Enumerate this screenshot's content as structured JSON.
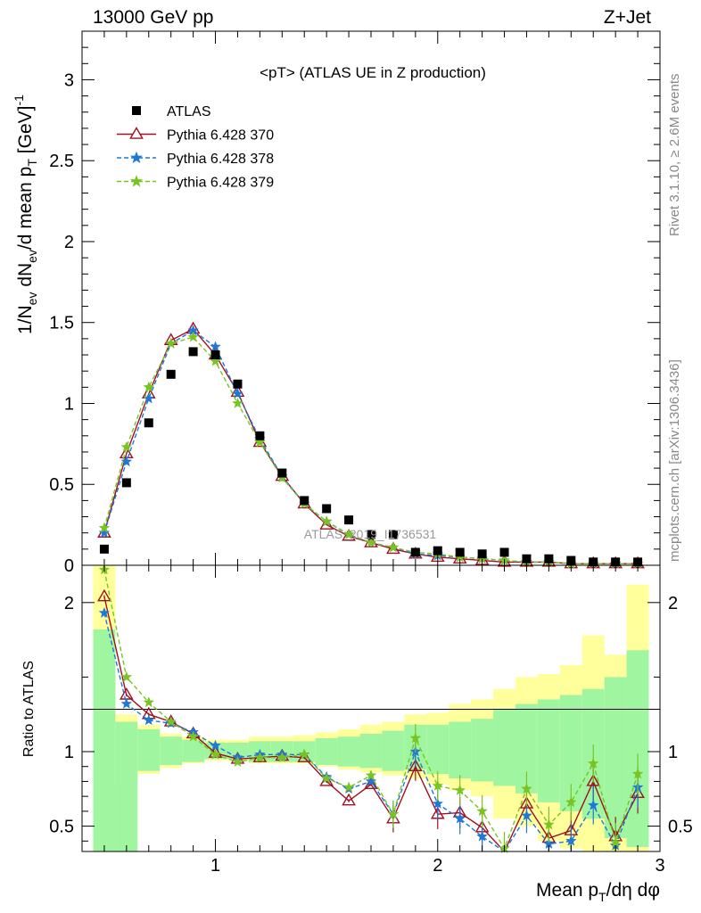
{
  "header": {
    "left": "13000 GeV pp",
    "right": "Z+Jet"
  },
  "side": {
    "rivet": "Rivet 3.1.10, ≥ 2.6M events",
    "mcplots": "mcplots.cern.ch [arXiv:1306.3436]"
  },
  "watermark": "ATLAS_2019_I1736531",
  "colors": {
    "data": "#000000",
    "p370": "#a01020",
    "p378": "#1f78d8",
    "p379": "#7ac422",
    "band_inner": "#a0f5a0",
    "band_outer": "#ffff9c"
  },
  "chart_data": [
    {
      "type": "scatter",
      "panel": "main",
      "title": "<pT> (ATLAS UE in Z production)",
      "xlabel": "Mean p_T/dη dφ",
      "ylabel": "1/N_ev dN_ev/d mean p_T [GeV]^-1",
      "xlim": [
        0.4,
        3.0
      ],
      "ylim": [
        0,
        3.3
      ],
      "yticks": [
        0,
        0.5,
        1,
        1.5,
        2,
        2.5,
        3
      ],
      "ytick_labels": [
        "0",
        "0.5",
        "1",
        "1.5",
        "2",
        "2.5",
        "3"
      ],
      "legend": [
        "ATLAS",
        "Pythia 6.428 370",
        "Pythia 6.428 378",
        "Pythia 6.428 379"
      ],
      "legend_position": "top-left",
      "x": [
        0.5,
        0.6,
        0.7,
        0.8,
        0.9,
        1.0,
        1.1,
        1.2,
        1.3,
        1.4,
        1.5,
        1.6,
        1.7,
        1.8,
        1.9,
        2.0,
        2.1,
        2.2,
        2.3,
        2.4,
        2.5,
        2.6,
        2.7,
        2.8,
        2.9
      ],
      "series": [
        {
          "name": "ATLAS",
          "marker": "square",
          "values": [
            0.1,
            0.51,
            0.88,
            1.18,
            1.32,
            1.3,
            1.12,
            0.8,
            0.57,
            0.4,
            0.35,
            0.28,
            0.19,
            0.19,
            0.08,
            0.09,
            0.08,
            0.07,
            0.08,
            0.04,
            0.04,
            0.03,
            0.02,
            0.02,
            0.02
          ]
        },
        {
          "name": "Pythia 6.428 370",
          "marker": "triangle",
          "values": [
            0.2,
            0.69,
            1.06,
            1.39,
            1.46,
            1.3,
            1.07,
            0.76,
            0.55,
            0.38,
            0.25,
            0.18,
            0.14,
            0.1,
            0.07,
            0.05,
            0.04,
            0.03,
            0.02,
            0.02,
            0.02,
            0.01,
            0.01,
            0.01,
            0.01
          ]
        },
        {
          "name": "Pythia 6.428 378",
          "marker": "star",
          "values": [
            0.2,
            0.64,
            1.03,
            1.37,
            1.45,
            1.35,
            1.06,
            0.78,
            0.55,
            0.38,
            0.27,
            0.19,
            0.14,
            0.11,
            0.07,
            0.06,
            0.05,
            0.04,
            0.03,
            0.02,
            0.02,
            0.01,
            0.01,
            0.01,
            0.01
          ]
        },
        {
          "name": "Pythia 6.428 379",
          "marker": "star",
          "values": [
            0.23,
            0.73,
            1.1,
            1.37,
            1.41,
            1.26,
            1.0,
            0.76,
            0.54,
            0.38,
            0.27,
            0.19,
            0.14,
            0.11,
            0.08,
            0.07,
            0.05,
            0.04,
            0.03,
            0.02,
            0.02,
            0.01,
            0.01,
            0.01,
            0.01
          ]
        }
      ]
    },
    {
      "type": "line",
      "panel": "ratio",
      "ylabel": "Ratio to ATLAS",
      "xlim": [
        0.4,
        3.0
      ],
      "ylim": [
        0.33,
        2.25
      ],
      "xticks": [
        1,
        2,
        3
      ],
      "xtick_labels": [
        "1",
        "2",
        "3"
      ],
      "yticks": [
        0.5,
        1,
        2
      ],
      "ytick_labels": [
        "0.5",
        "1",
        "2"
      ],
      "x": [
        0.5,
        0.6,
        0.7,
        0.8,
        0.9,
        1.0,
        1.1,
        1.2,
        1.3,
        1.4,
        1.5,
        1.6,
        1.7,
        1.8,
        1.9,
        2.0,
        2.1,
        2.2,
        2.3,
        2.4,
        2.5,
        2.6,
        2.7,
        2.8,
        2.9
      ],
      "band_inner": {
        "low": [
          0.3,
          0.3,
          0.87,
          0.91,
          0.93,
          0.95,
          0.95,
          0.93,
          0.93,
          0.93,
          0.91,
          0.9,
          0.89,
          0.87,
          0.88,
          0.85,
          0.82,
          0.8,
          0.77,
          0.72,
          0.66,
          0.6,
          0.55,
          0.42,
          0.36
        ],
        "high": [
          1.82,
          1.2,
          1.15,
          1.1,
          1.08,
          1.06,
          1.06,
          1.07,
          1.07,
          1.07,
          1.09,
          1.1,
          1.12,
          1.14,
          1.18,
          1.18,
          1.2,
          1.22,
          1.28,
          1.32,
          1.35,
          1.38,
          1.42,
          1.5,
          1.68
        ]
      },
      "band_outer": {
        "low": [
          0.3,
          0.77,
          0.85,
          0.89,
          0.92,
          0.94,
          0.94,
          0.92,
          0.92,
          0.92,
          0.9,
          0.88,
          0.86,
          0.84,
          0.82,
          0.78,
          0.74,
          0.7,
          0.55,
          0.5,
          0.4,
          0.35,
          0.3,
          0.3,
          0.3
        ],
        "high": [
          2.25,
          1.25,
          1.18,
          1.12,
          1.1,
          1.08,
          1.08,
          1.1,
          1.1,
          1.11,
          1.13,
          1.15,
          1.18,
          1.2,
          1.25,
          1.26,
          1.32,
          1.35,
          1.42,
          1.5,
          1.52,
          1.58,
          1.78,
          1.65,
          2.12
        ]
      },
      "series": [
        {
          "name": "Pythia 6.428 370",
          "values": [
            2.04,
            1.38,
            1.25,
            1.2,
            1.12,
            0.99,
            0.95,
            0.96,
            0.97,
            0.96,
            0.8,
            0.67,
            0.78,
            0.55,
            0.9,
            0.58,
            0.59,
            0.49,
            0.31,
            0.65,
            0.42,
            0.47,
            0.8,
            0.43,
            0.72
          ]
        },
        {
          "name": "Pythia 6.428 378",
          "values": [
            1.93,
            1.32,
            1.21,
            1.19,
            1.13,
            1.04,
            0.96,
            0.98,
            0.98,
            0.98,
            0.83,
            0.75,
            0.8,
            0.58,
            1.0,
            0.65,
            0.55,
            0.43,
            0.3,
            0.57,
            0.38,
            0.4,
            0.64,
            0.37,
            0.76
          ]
        },
        {
          "name": "Pythia 6.428 379",
          "values": [
            2.22,
            1.5,
            1.33,
            1.2,
            1.1,
            0.98,
            0.93,
            0.96,
            0.96,
            0.98,
            0.82,
            0.76,
            0.84,
            0.58,
            1.09,
            0.77,
            0.74,
            0.6,
            0.35,
            0.75,
            0.51,
            0.66,
            0.92,
            0.39,
            0.85
          ]
        }
      ]
    }
  ]
}
